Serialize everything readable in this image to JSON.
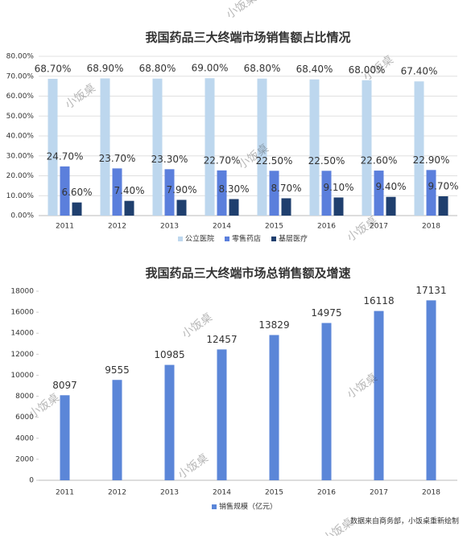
{
  "chart_data": [
    {
      "type": "bar",
      "title": "我国药品三大终端市场销售额占比情况",
      "categories": [
        "2011",
        "2012",
        "2013",
        "2014",
        "2015",
        "2016",
        "2017",
        "2018"
      ],
      "series": [
        {
          "name": "公立医院",
          "color": "#bdd7ee",
          "values": [
            68.7,
            68.9,
            68.8,
            69.0,
            68.8,
            68.4,
            68.0,
            67.4
          ],
          "value_labels": [
            "68.70%",
            "68.90%",
            "68.80%",
            "69.00%",
            "68.80%",
            "68.40%",
            "68.00%",
            "67.40%"
          ]
        },
        {
          "name": "零售药店",
          "color": "#5b7fdc",
          "values": [
            24.7,
            23.7,
            23.3,
            22.7,
            22.5,
            22.5,
            22.6,
            22.9
          ],
          "value_labels": [
            "24.70%",
            "23.70%",
            "23.30%",
            "22.70%",
            "22.50%",
            "22.50%",
            "22.60%",
            "22.90%"
          ]
        },
        {
          "name": "基层医疗",
          "color": "#1f3f6e",
          "values": [
            6.6,
            7.4,
            7.9,
            8.3,
            8.7,
            9.1,
            9.4,
            9.7
          ],
          "value_labels": [
            "6.60%",
            "7.40%",
            "7.90%",
            "8.30%",
            "8.70%",
            "9.10%",
            "9.40%",
            "9.70%"
          ]
        }
      ],
      "ylim": [
        0,
        80
      ],
      "yticks": [
        {
          "value": 0,
          "label": "0.00%"
        },
        {
          "value": 10,
          "label": "10.00%"
        },
        {
          "value": 20,
          "label": "20.00%"
        },
        {
          "value": 30,
          "label": "30.00%"
        },
        {
          "value": 40,
          "label": "40.00%"
        },
        {
          "value": 50,
          "label": "50.00%"
        },
        {
          "value": 60,
          "label": "60.00%"
        },
        {
          "value": 70,
          "label": "70.00%"
        },
        {
          "value": 80,
          "label": "80.00%"
        }
      ],
      "grid": true
    },
    {
      "type": "bar",
      "title": "我国药品三大终端市场总销售额及增速",
      "categories": [
        "2011",
        "2012",
        "2013",
        "2014",
        "2015",
        "2016",
        "2017",
        "2018"
      ],
      "series": [
        {
          "name": "销售规模（亿元）",
          "color": "#5b86d8",
          "values": [
            8097,
            9555,
            10985,
            12457,
            13829,
            14975,
            16118,
            17131
          ]
        }
      ],
      "ylim": [
        0,
        18000
      ],
      "yticks": [
        0,
        2000,
        4000,
        6000,
        8000,
        10000,
        12000,
        14000,
        16000,
        18000
      ],
      "grid": false
    }
  ],
  "source": "数据来自商务部，小饭桌重新绘制",
  "watermark": "小饭桌"
}
